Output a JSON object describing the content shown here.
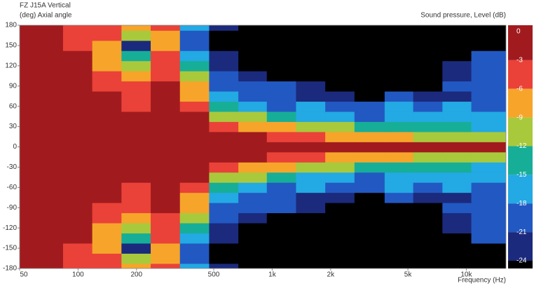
{
  "chart_data": {
    "type": "contour",
    "title": "FZ J15A Vertical",
    "y_label": "(deg)  Axial angle",
    "z_label": "Sound pressure, Level  (dB)",
    "x_label": "Frequency  (Hz)",
    "log_x": true,
    "xlim": [
      50,
      16000
    ],
    "xticks": [
      50,
      100,
      200,
      500,
      {
        "value": 1000,
        "label": "1k"
      },
      {
        "value": 2000,
        "label": "2k"
      },
      {
        "value": 5000,
        "label": "5k"
      },
      {
        "value": 10000,
        "label": "10k"
      }
    ],
    "ylim": [
      -180,
      180
    ],
    "yticks": [
      -180,
      -150,
      -120,
      -90,
      -60,
      -30,
      0,
      30,
      60,
      90,
      120,
      150,
      180
    ],
    "zticks": [
      0,
      -3,
      -6,
      -9,
      -12,
      -15,
      -18,
      -21,
      -24
    ],
    "colors": [
      "#a11b1e",
      "#ea4238",
      "#f6a52a",
      "#a9c93c",
      "#17ae98",
      "#23a9e3",
      "#2258c2",
      "#1b2a7c",
      "#000000"
    ],
    "x": [
      50,
      70,
      100,
      140,
      200,
      280,
      400,
      560,
      800,
      1100,
      1600,
      2200,
      3200,
      4500,
      6300,
      9000,
      12500
    ],
    "y": [
      -180,
      -165,
      -150,
      -135,
      -120,
      -105,
      -90,
      -75,
      -60,
      -45,
      -30,
      -15,
      0,
      15,
      30,
      45,
      60,
      75,
      90,
      105,
      120,
      135,
      150,
      165,
      180
    ],
    "z": [
      [
        0,
        0,
        -4,
        -5,
        -9,
        -6,
        -18,
        -22,
        -27,
        -27,
        -27,
        -27,
        -27,
        -27,
        -27,
        -27,
        -27
      ],
      [
        0,
        0,
        -4,
        -6,
        -10,
        -7,
        -20,
        -25,
        -27,
        -27,
        -27,
        -27,
        -27,
        -27,
        -27,
        -27,
        -27
      ],
      [
        0,
        0,
        -4,
        -7,
        -22,
        -8,
        -19,
        -26,
        -27,
        -27,
        -27,
        -27,
        -27,
        -27,
        -27,
        -27,
        -26
      ],
      [
        0,
        0,
        -3,
        -8,
        -13,
        -6,
        -17,
        -24,
        -27,
        -27,
        -27,
        -27,
        -27,
        -27,
        -27,
        -26,
        -21
      ],
      [
        0,
        0,
        -3,
        -7,
        -10,
        -5,
        -13,
        -22,
        -26,
        -25,
        -27,
        -27,
        -27,
        -27,
        -27,
        -22,
        -19
      ],
      [
        0,
        0,
        -1,
        -5,
        -7,
        -4,
        -10,
        -21,
        -22,
        -26,
        -27,
        -27,
        -27,
        -27,
        -26,
        -22,
        -20
      ],
      [
        0,
        0,
        0,
        -4,
        -5,
        -2,
        -9,
        -19,
        -21,
        -19,
        -22,
        -26,
        -27,
        -26,
        -25,
        -21,
        -19
      ],
      [
        0,
        0,
        0,
        -3,
        -4,
        -1,
        -7,
        -16,
        -19,
        -20,
        -22,
        -22,
        -26,
        -21,
        -22,
        -23,
        -21
      ],
      [
        0,
        0,
        0,
        -2,
        -4,
        0,
        -4,
        -13,
        -17,
        -19,
        -17,
        -20,
        -19,
        -18,
        -20,
        -18,
        -20
      ],
      [
        0,
        0,
        0,
        0,
        0,
        0,
        -2,
        -10,
        -12,
        -14,
        -16,
        -17,
        -19,
        -16,
        -17,
        -16,
        -18
      ],
      [
        0,
        0,
        0,
        0,
        0,
        0,
        0,
        -5,
        -7,
        -9,
        -11,
        -12,
        -13,
        -14,
        -13,
        -14,
        -16
      ],
      [
        0,
        0,
        0,
        0,
        0,
        0,
        0,
        0,
        -2,
        -4,
        -5,
        -7,
        -8,
        -8,
        -10,
        -10,
        -11
      ],
      [
        0,
        0,
        0,
        0,
        0,
        0,
        0,
        0,
        0,
        0,
        0,
        0,
        0,
        0,
        0,
        -2,
        -3
      ],
      [
        0,
        0,
        0,
        0,
        0,
        0,
        0,
        0,
        -2,
        -4,
        -5,
        -7,
        -8,
        -8,
        -10,
        -10,
        -11
      ],
      [
        0,
        0,
        0,
        0,
        0,
        0,
        0,
        -5,
        -7,
        -9,
        -11,
        -12,
        -13,
        -14,
        -13,
        -14,
        -16
      ],
      [
        0,
        0,
        0,
        0,
        0,
        0,
        -2,
        -10,
        -12,
        -14,
        -16,
        -17,
        -19,
        -16,
        -17,
        -16,
        -18
      ],
      [
        0,
        0,
        0,
        -2,
        -4,
        0,
        -4,
        -13,
        -17,
        -19,
        -17,
        -20,
        -19,
        -18,
        -20,
        -18,
        -20
      ],
      [
        0,
        0,
        0,
        -3,
        -4,
        -1,
        -7,
        -16,
        -19,
        -20,
        -22,
        -22,
        -26,
        -21,
        -22,
        -23,
        -21
      ],
      [
        0,
        0,
        0,
        -4,
        -5,
        -2,
        -9,
        -19,
        -21,
        -19,
        -22,
        -26,
        -27,
        -26,
        -25,
        -21,
        -19
      ],
      [
        0,
        0,
        -1,
        -5,
        -7,
        -4,
        -10,
        -21,
        -22,
        -26,
        -27,
        -27,
        -27,
        -27,
        -26,
        -22,
        -20
      ],
      [
        0,
        0,
        -3,
        -7,
        -10,
        -5,
        -13,
        -22,
        -26,
        -25,
        -27,
        -27,
        -27,
        -27,
        -27,
        -22,
        -19
      ],
      [
        0,
        0,
        -3,
        -8,
        -13,
        -6,
        -17,
        -24,
        -27,
        -27,
        -27,
        -27,
        -27,
        -27,
        -27,
        -26,
        -21
      ],
      [
        0,
        0,
        -4,
        -7,
        -22,
        -8,
        -19,
        -26,
        -27,
        -27,
        -27,
        -27,
        -27,
        -27,
        -27,
        -27,
        -26
      ],
      [
        0,
        0,
        -4,
        -6,
        -10,
        -7,
        -20,
        -25,
        -27,
        -27,
        -27,
        -27,
        -27,
        -27,
        -27,
        -27,
        -27
      ],
      [
        0,
        0,
        -4,
        -5,
        -9,
        -6,
        -18,
        -22,
        -27,
        -27,
        -27,
        -27,
        -27,
        -27,
        -27,
        -27,
        -27
      ]
    ]
  }
}
